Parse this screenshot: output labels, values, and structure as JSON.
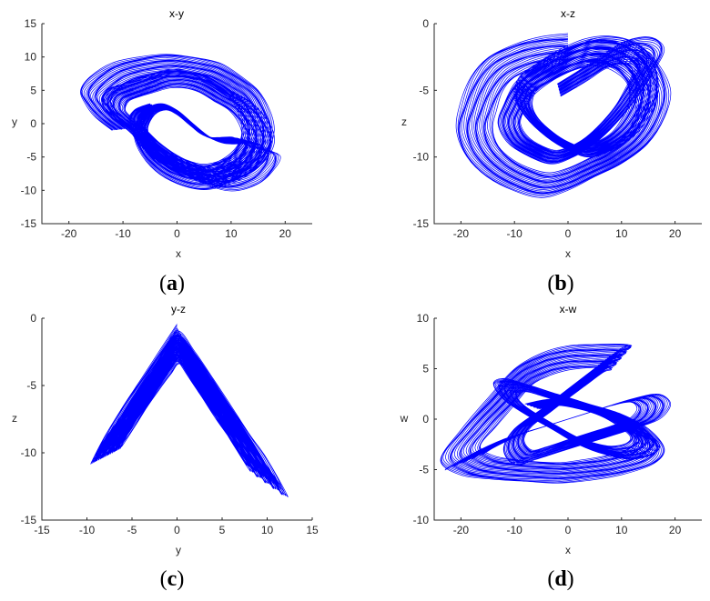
{
  "colors": {
    "trajectory": "#0000ff",
    "axis": "#262626"
  },
  "chart_data": [
    {
      "id": "a",
      "type": "line",
      "title": "x-y",
      "xlabel": "x",
      "ylabel": "y",
      "xlim": [
        -25,
        25
      ],
      "ylim": [
        -15,
        15
      ],
      "xticks": [
        -20,
        -10,
        0,
        10,
        20
      ],
      "yticks": [
        -15,
        -10,
        -5,
        0,
        5,
        10,
        15
      ],
      "grid": false,
      "panel_label": "a",
      "series": [
        {
          "values_description_free": true,
          "x": [
            -12,
            -15,
            -17,
            -18,
            -16,
            -12,
            -7,
            -2,
            3,
            8,
            12,
            15,
            17,
            18,
            17,
            14,
            10,
            5,
            0,
            -4,
            -7,
            -8,
            -6,
            -3,
            0,
            3,
            6,
            9,
            12,
            15,
            17,
            19,
            18,
            15,
            10,
            5,
            0,
            -5,
            -9,
            -12,
            -14,
            -13,
            -10,
            -6,
            -2,
            2,
            6,
            10,
            14,
            17,
            18,
            16,
            12,
            7,
            2,
            -3,
            -7,
            -9,
            -8,
            -5
          ],
          "y": [
            -1,
            1,
            3,
            5,
            7,
            9,
            10,
            10.5,
            10,
            9,
            7,
            5,
            2,
            -1,
            -4,
            -7,
            -9,
            -10,
            -9,
            -7,
            -4,
            -1,
            2,
            3,
            2,
            0,
            -2,
            -3,
            -3,
            -3,
            -4,
            -5,
            -7,
            -9,
            -10,
            -9,
            -7,
            -4,
            -1,
            1,
            3,
            5,
            6,
            7,
            8,
            8,
            7,
            5,
            3,
            0,
            -3,
            -6,
            -8,
            -9,
            -8,
            -6,
            -3,
            0,
            2,
            3
          ]
        }
      ]
    },
    {
      "id": "b",
      "type": "line",
      "title": "x-z",
      "xlabel": "x",
      "ylabel": "z",
      "xlim": [
        -25,
        25
      ],
      "ylim": [
        -15,
        0
      ],
      "xticks": [
        -20,
        -10,
        0,
        10,
        20
      ],
      "yticks": [
        -15,
        -10,
        -5,
        0
      ],
      "grid": false,
      "panel_label": "b",
      "series": [
        {
          "x": [
            0,
            -5,
            -10,
            -15,
            -18,
            -20,
            -21,
            -19,
            -15,
            -10,
            -5,
            0,
            5,
            10,
            15,
            18,
            19,
            17,
            13,
            8,
            3,
            -2,
            -6,
            -9,
            -10,
            -8,
            -4,
            0,
            4,
            8,
            12,
            15,
            17,
            16,
            12,
            7,
            2,
            -3,
            -7,
            -10,
            -12,
            -13,
            -11,
            -7,
            -3,
            1,
            5,
            9,
            13,
            16,
            18,
            17,
            14,
            10,
            6,
            2,
            -2
          ],
          "y": [
            -0.8,
            -1,
            -1.5,
            -2.5,
            -4,
            -6,
            -8,
            -10,
            -11.5,
            -12.5,
            -13,
            -12.5,
            -11.5,
            -10.5,
            -9,
            -7,
            -5,
            -3,
            -1.5,
            -1,
            -1.2,
            -2,
            -3,
            -4,
            -5.5,
            -7,
            -8.5,
            -9.5,
            -10,
            -9.5,
            -8.5,
            -7,
            -5,
            -3,
            -1.5,
            -1,
            -1.5,
            -2.5,
            -3.5,
            -4.5,
            -6,
            -7.5,
            -9,
            -10,
            -10.5,
            -10,
            -9,
            -7.5,
            -5.5,
            -3.5,
            -2,
            -1.2,
            -1,
            -1.5,
            -2.5,
            -3.5,
            -4.5
          ]
        }
      ]
    },
    {
      "id": "c",
      "type": "line",
      "title": "y-z",
      "xlabel": "y",
      "ylabel": "z",
      "xlim": [
        -15,
        15
      ],
      "ylim": [
        -15,
        0
      ],
      "xticks": [
        -15,
        -10,
        -5,
        0,
        5,
        10,
        15
      ],
      "yticks": [
        -15,
        -10,
        -5,
        0
      ],
      "grid": false,
      "panel_label": "c",
      "series": [
        {
          "x": [
            0,
            -2,
            -4,
            -6,
            -8,
            -9.5,
            -8,
            -6,
            -4,
            -2,
            0,
            2,
            4,
            6,
            8,
            10,
            12.2,
            10,
            8,
            6,
            4,
            2,
            0,
            -2,
            -4,
            -6,
            -8,
            -9.2,
            -7,
            -5,
            -3,
            -1,
            0.5,
            2.5,
            4.5,
            6.5,
            8.5,
            10.5,
            11.5,
            9.5,
            7.5,
            5.5,
            3.5,
            1.5,
            0
          ],
          "y": [
            -0.5,
            -2.5,
            -4.5,
            -6.5,
            -8.8,
            -10.8,
            -9,
            -7,
            -5,
            -3,
            -1,
            -2.5,
            -4.5,
            -6.5,
            -8.5,
            -10.5,
            -13.3,
            -11,
            -8.8,
            -6.8,
            -4.8,
            -2.8,
            -1.2,
            -3,
            -5,
            -7,
            -9,
            -10.5,
            -8.3,
            -6.3,
            -4.3,
            -2.5,
            -1.5,
            -3.5,
            -5.5,
            -7.5,
            -9.5,
            -11.5,
            -12.5,
            -10.5,
            -8.5,
            -6.5,
            -4.5,
            -2.5,
            -0.8
          ]
        }
      ]
    },
    {
      "id": "d",
      "type": "line",
      "title": "x-w",
      "xlabel": "x",
      "ylabel": "w",
      "xlim": [
        -25,
        25
      ],
      "ylim": [
        -10,
        10
      ],
      "xticks": [
        -20,
        -10,
        0,
        10,
        20
      ],
      "yticks": [
        -10,
        -5,
        0,
        5,
        10
      ],
      "grid": false,
      "panel_label": "d",
      "series": [
        {
          "x": [
            -23,
            -18,
            -12,
            -6,
            0,
            6,
            12,
            17,
            19,
            17,
            12,
            6,
            0,
            -6,
            -10,
            -12,
            -10,
            -5,
            0,
            5,
            10,
            12,
            10,
            5,
            0,
            -5,
            -10,
            -15,
            -20,
            -24,
            -20,
            -14,
            -8,
            -2,
            4,
            10,
            16,
            18,
            15,
            10,
            4,
            -2,
            -8,
            -12,
            -14,
            -12,
            -8,
            -3,
            2,
            7,
            12,
            16,
            17,
            14,
            9,
            3,
            -3,
            -8
          ],
          "y": [
            -5,
            -3.5,
            -2,
            -1,
            0,
            1,
            2,
            2.5,
            1.5,
            0,
            -1,
            -2,
            -3,
            -4,
            -4.5,
            -3,
            -1,
            1,
            3,
            5,
            7,
            7.3,
            7.5,
            7.4,
            7.2,
            6.5,
            5,
            2,
            -1,
            -4,
            -5.5,
            -6,
            -6.2,
            -6.3,
            -6,
            -5.5,
            -4.5,
            -3,
            -1,
            0.5,
            1.5,
            2.5,
            3.5,
            4,
            3.5,
            2,
            0.5,
            -1,
            -2.5,
            -3.5,
            -4,
            -3.5,
            -2.5,
            -1,
            0.5,
            1.5,
            2,
            1.5
          ]
        }
      ]
    }
  ]
}
